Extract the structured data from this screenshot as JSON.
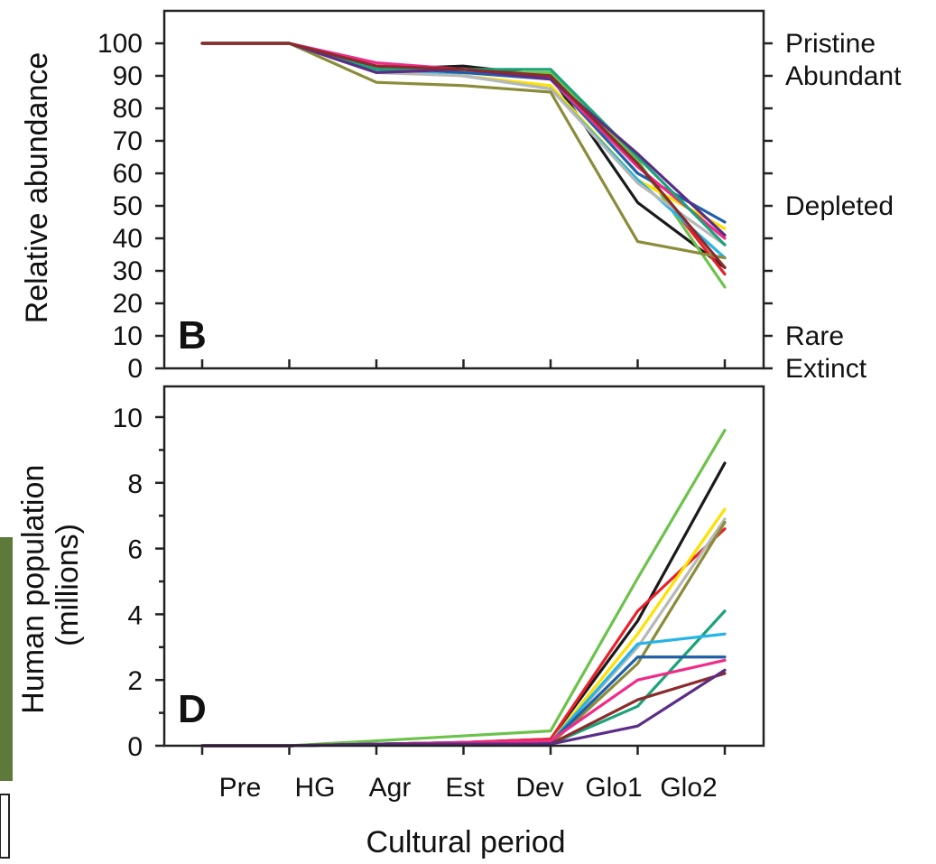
{
  "chart_data": [
    {
      "type": "line",
      "panel_letter": "B",
      "ylabel": "Relative abundance",
      "xlabel": "",
      "ylim": [
        0,
        100
      ],
      "yticks": [
        "0",
        "10",
        "20",
        "30",
        "40",
        "50",
        "60",
        "70",
        "80",
        "90",
        "100"
      ],
      "right_labels": [
        "Pristine",
        "Abundant",
        "Depleted",
        "Rare",
        "Extinct"
      ],
      "right_label_values": [
        100,
        90,
        50,
        10,
        0
      ],
      "categories": [
        "Pre",
        "HG",
        "Agr",
        "Est",
        "Dev",
        "Glo1",
        "Glo2"
      ],
      "grid": false,
      "series": [
        {
          "color": "#1a1a1a",
          "values": [
            100,
            100,
            92,
            93,
            90,
            51,
            31
          ]
        },
        {
          "color": "#e8202a",
          "values": [
            100,
            100,
            93,
            91,
            90,
            63,
            29
          ]
        },
        {
          "color": "#6cc24a",
          "values": [
            100,
            100,
            92,
            91,
            91,
            64,
            25
          ]
        },
        {
          "color": "#1f5fa8",
          "values": [
            100,
            100,
            92,
            91,
            89,
            60,
            45
          ]
        },
        {
          "color": "#ffe000",
          "values": [
            100,
            100,
            92,
            90,
            87,
            58,
            43
          ]
        },
        {
          "color": "#f02b89",
          "values": [
            100,
            100,
            94,
            92,
            89,
            62,
            40
          ]
        },
        {
          "color": "#25b4e6",
          "values": [
            100,
            100,
            92,
            90,
            86,
            58,
            34
          ]
        },
        {
          "color": "#b8b8b8",
          "values": [
            100,
            100,
            91,
            90,
            86,
            57,
            38
          ]
        },
        {
          "color": "#8b8c3a",
          "values": [
            100,
            100,
            88,
            87,
            85,
            39,
            34
          ]
        },
        {
          "color": "#1aa37a",
          "values": [
            100,
            100,
            92,
            92,
            92,
            65,
            38
          ]
        },
        {
          "color": "#5b2d86",
          "values": [
            100,
            100,
            91,
            92,
            89,
            66,
            41
          ]
        },
        {
          "color": "#8b2b2b",
          "values": [
            100,
            100,
            93,
            92,
            90,
            63,
            31
          ]
        }
      ]
    },
    {
      "type": "line",
      "panel_letter": "D",
      "ylabel": "Human population (millions)",
      "ylabel_lines": [
        "Human population",
        "(millions)"
      ],
      "xlabel": "Cultural period",
      "ylim": [
        0,
        10
      ],
      "yticks": [
        "0",
        "2",
        "4",
        "6",
        "8",
        "10"
      ],
      "categories": [
        "Pre",
        "HG",
        "Agr",
        "Est",
        "Dev",
        "Glo1",
        "Glo2"
      ],
      "grid": false,
      "series": [
        {
          "color": "#6cc24a",
          "values": [
            0,
            0,
            0.15,
            0.3,
            0.45,
            5.1,
            9.6
          ]
        },
        {
          "color": "#1a1a1a",
          "values": [
            0,
            0,
            0.05,
            0.1,
            0.2,
            3.8,
            8.6
          ]
        },
        {
          "color": "#e8202a",
          "values": [
            0,
            0,
            0.05,
            0.1,
            0.2,
            4.1,
            6.6
          ]
        },
        {
          "color": "#ffe000",
          "values": [
            0,
            0,
            0.05,
            0.1,
            0.1,
            3.4,
            7.2
          ]
        },
        {
          "color": "#b8b8b8",
          "values": [
            0,
            0,
            0.05,
            0.1,
            0.1,
            3.0,
            6.9
          ]
        },
        {
          "color": "#8b8c3a",
          "values": [
            0,
            0,
            0.05,
            0.05,
            0.05,
            2.5,
            6.8
          ]
        },
        {
          "color": "#1aa37a",
          "values": [
            0,
            0,
            0.05,
            0.05,
            0.05,
            1.2,
            4.1
          ]
        },
        {
          "color": "#25b4e6",
          "values": [
            0,
            0,
            0.05,
            0.1,
            0.1,
            3.1,
            3.4
          ]
        },
        {
          "color": "#1f5fa8",
          "values": [
            0,
            0,
            0.05,
            0.1,
            0.1,
            2.7,
            2.7
          ]
        },
        {
          "color": "#f02b89",
          "values": [
            0,
            0,
            0.05,
            0.1,
            0.15,
            2.0,
            2.6
          ]
        },
        {
          "color": "#8b2b2b",
          "values": [
            0,
            0,
            0.05,
            0.05,
            0.05,
            1.4,
            2.2
          ]
        },
        {
          "color": "#5b2d86",
          "values": [
            0,
            0,
            0.05,
            0.05,
            0.05,
            0.6,
            2.3
          ]
        }
      ]
    }
  ]
}
